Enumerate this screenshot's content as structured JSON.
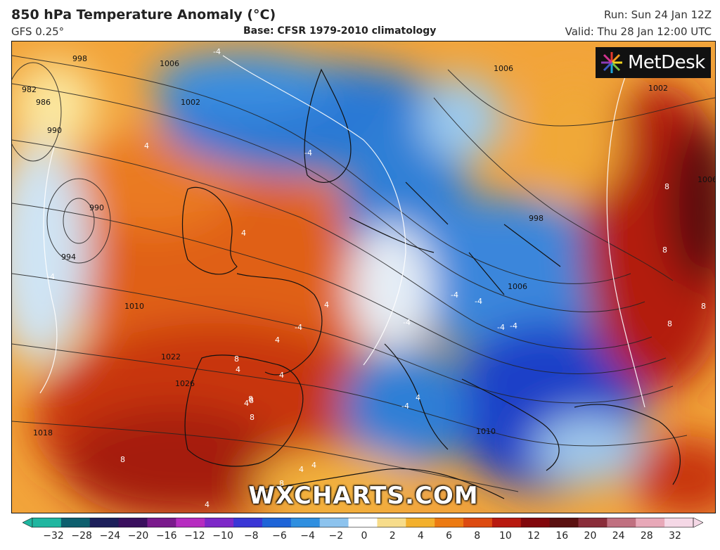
{
  "header": {
    "title": "850 hPa Temperature Anomaly (°C)",
    "model": "GFS 0.25°",
    "base": "Base: CFSR 1979-2010 climatology",
    "run": "Run: Sun 24 Jan 12Z",
    "valid": "Valid: Thu 28 Jan 12:00 UTC"
  },
  "branding": {
    "logo_text": "MetDesk",
    "watermark": "WXCHARTS.COM"
  },
  "colorbar": {
    "ticks": [
      "−32",
      "−28",
      "−24",
      "−20",
      "−16",
      "−12",
      "−10",
      "−8",
      "−6",
      "−4",
      "−2",
      "0",
      "2",
      "4",
      "6",
      "8",
      "10",
      "12",
      "16",
      "20",
      "24",
      "28",
      "32"
    ],
    "colors": [
      "#1fb6a0",
      "#0d5f6e",
      "#1c1f5a",
      "#3a0f5e",
      "#7a1a8c",
      "#b62cc0",
      "#7d28c8",
      "#3a36d6",
      "#1e64d8",
      "#2f8fe0",
      "#8cc3ee",
      "#ffffff",
      "#f7dc8a",
      "#f3b02c",
      "#ec7a12",
      "#dd4a10",
      "#b8190f",
      "#82070c",
      "#5a1010",
      "#8a2d3a",
      "#c07080",
      "#e8a8b8",
      "#f5d8e6"
    ]
  },
  "isobars": [
    "982",
    "986",
    "990",
    "990",
    "994",
    "998",
    "1002",
    "1006",
    "1006",
    "1002",
    "1006",
    "1010",
    "998",
    "1006",
    "1010",
    "1018",
    "1022",
    "1026"
  ],
  "anomaly_labels": [
    "-4",
    "-4",
    "4",
    "-4",
    "4",
    "4",
    "4",
    "4",
    "4",
    "8",
    "8",
    "4",
    "8",
    "8",
    "8",
    "8",
    "8",
    "-4",
    "-4",
    "-4",
    "4",
    "8",
    "8",
    "8",
    "-4",
    "-4",
    "-4",
    "4",
    "4",
    "4",
    "-4"
  ]
}
